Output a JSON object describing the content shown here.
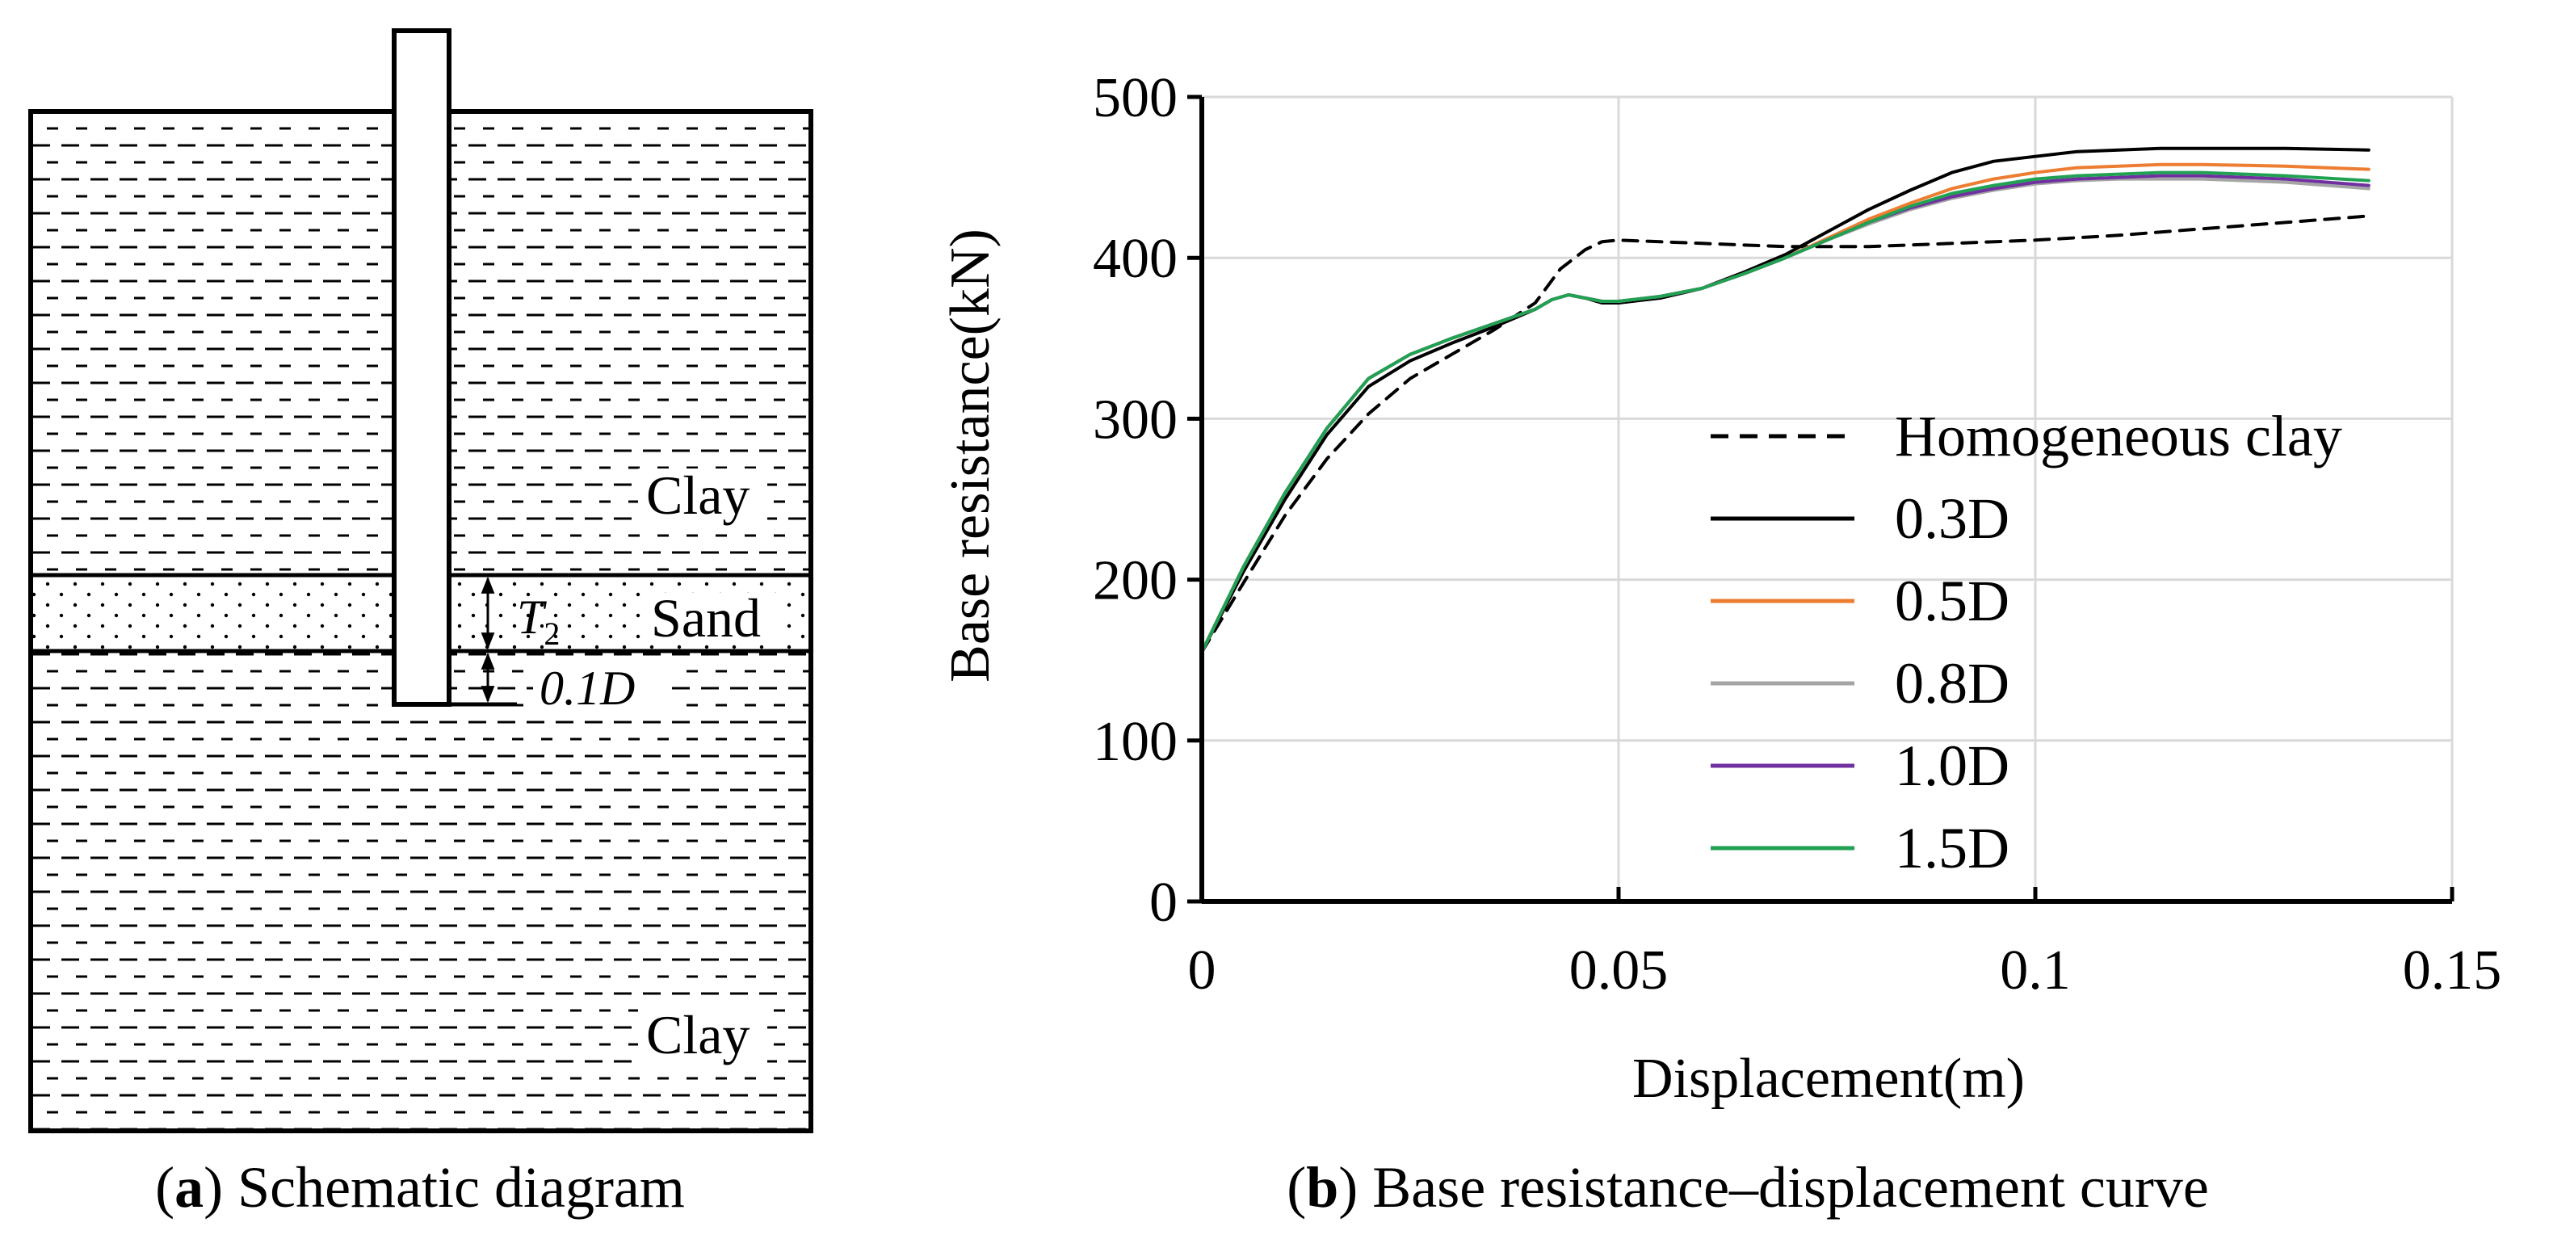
{
  "panel_a": {
    "caption_letter": "a",
    "caption_text": " Schematic diagram",
    "labels": {
      "clay_top": "Clay",
      "sand": "Sand",
      "clay_bottom": "Clay",
      "t2_symbol": "T",
      "t2_subscript": "2",
      "tip_distance": "0.1D"
    }
  },
  "panel_b": {
    "caption_letter": "b",
    "caption_text": " Base resistance–displacement curve"
  },
  "chart_data": {
    "type": "line",
    "title": "",
    "xlabel": "Displacement(m)",
    "ylabel": "Base resistance(kN)",
    "xlim": [
      0,
      0.15
    ],
    "ylim": [
      0,
      500
    ],
    "xticks": [
      0,
      0.05,
      0.1,
      0.15
    ],
    "xtick_labels": [
      "0",
      "0.05",
      "0.1",
      "0.15"
    ],
    "yticks": [
      0,
      100,
      200,
      300,
      400,
      500
    ],
    "ytick_labels": [
      "0",
      "100",
      "200",
      "300",
      "400",
      "500"
    ],
    "grid": true,
    "legend_position": "center-right",
    "series": [
      {
        "name": "Homogeneous clay",
        "color": "#000000",
        "dash": "dashed",
        "x": [
          0,
          0.005,
          0.01,
          0.015,
          0.02,
          0.025,
          0.03,
          0.035,
          0.04,
          0.043,
          0.046,
          0.048,
          0.05,
          0.055,
          0.06,
          0.07,
          0.08,
          0.09,
          0.1,
          0.11,
          0.12,
          0.13,
          0.14
        ],
        "y": [
          155,
          198,
          240,
          275,
          303,
          325,
          340,
          355,
          372,
          393,
          405,
          410,
          411,
          410,
          409,
          407,
          407,
          409,
          411,
          414,
          418,
          422,
          426
        ]
      },
      {
        "name": "0.3D",
        "color": "#000000",
        "dash": "solid",
        "x": [
          0,
          0.005,
          0.01,
          0.015,
          0.02,
          0.025,
          0.03,
          0.035,
          0.04,
          0.042,
          0.044,
          0.046,
          0.048,
          0.05,
          0.055,
          0.06,
          0.065,
          0.07,
          0.075,
          0.08,
          0.085,
          0.09,
          0.095,
          0.1,
          0.105,
          0.11,
          0.115,
          0.12,
          0.13,
          0.14
        ],
        "y": [
          155,
          205,
          250,
          290,
          320,
          336,
          347,
          357,
          368,
          374,
          377,
          375,
          372,
          372,
          375,
          381,
          391,
          402,
          416,
          430,
          442,
          453,
          460,
          463,
          466,
          467,
          468,
          468,
          468,
          467
        ]
      },
      {
        "name": "0.5D",
        "color": "#ED7D31",
        "dash": "solid",
        "x": [
          0,
          0.005,
          0.01,
          0.015,
          0.02,
          0.025,
          0.03,
          0.035,
          0.04,
          0.042,
          0.044,
          0.046,
          0.048,
          0.05,
          0.055,
          0.06,
          0.065,
          0.07,
          0.075,
          0.08,
          0.085,
          0.09,
          0.095,
          0.1,
          0.105,
          0.11,
          0.115,
          0.12,
          0.13,
          0.14
        ],
        "y": [
          155,
          208,
          254,
          294,
          325,
          340,
          350,
          359,
          368,
          374,
          377,
          375,
          373,
          373,
          376,
          381,
          390,
          400,
          412,
          424,
          434,
          443,
          449,
          453,
          456,
          457,
          458,
          458,
          457,
          455
        ]
      },
      {
        "name": "0.8D",
        "color": "#A5A5A5",
        "dash": "solid",
        "x": [
          0,
          0.005,
          0.01,
          0.015,
          0.02,
          0.025,
          0.03,
          0.035,
          0.04,
          0.042,
          0.044,
          0.046,
          0.048,
          0.05,
          0.055,
          0.06,
          0.065,
          0.07,
          0.075,
          0.08,
          0.085,
          0.09,
          0.095,
          0.1,
          0.105,
          0.11,
          0.115,
          0.12,
          0.13,
          0.14
        ],
        "y": [
          155,
          208,
          254,
          294,
          325,
          340,
          350,
          359,
          368,
          374,
          377,
          375,
          373,
          373,
          376,
          381,
          390,
          400,
          411,
          421,
          430,
          437,
          442,
          446,
          448,
          449,
          449,
          449,
          447,
          443
        ]
      },
      {
        "name": "1.0D",
        "color": "#7030A0",
        "dash": "solid",
        "x": [
          0,
          0.005,
          0.01,
          0.015,
          0.02,
          0.025,
          0.03,
          0.035,
          0.04,
          0.042,
          0.044,
          0.046,
          0.048,
          0.05,
          0.055,
          0.06,
          0.065,
          0.07,
          0.075,
          0.08,
          0.085,
          0.09,
          0.095,
          0.1,
          0.105,
          0.11,
          0.115,
          0.12,
          0.13,
          0.14
        ],
        "y": [
          155,
          208,
          254,
          294,
          325,
          340,
          350,
          359,
          368,
          374,
          377,
          375,
          373,
          373,
          376,
          381,
          390,
          400,
          411,
          422,
          431,
          438,
          443,
          447,
          449,
          450,
          451,
          451,
          449,
          445
        ]
      },
      {
        "name": "1.5D",
        "color": "#21A152",
        "dash": "solid",
        "x": [
          0,
          0.005,
          0.01,
          0.015,
          0.02,
          0.025,
          0.03,
          0.035,
          0.04,
          0.042,
          0.044,
          0.046,
          0.048,
          0.05,
          0.055,
          0.06,
          0.065,
          0.07,
          0.075,
          0.08,
          0.085,
          0.09,
          0.095,
          0.1,
          0.105,
          0.11,
          0.115,
          0.12,
          0.13,
          0.14
        ],
        "y": [
          155,
          208,
          254,
          294,
          325,
          340,
          350,
          359,
          368,
          374,
          377,
          375,
          373,
          373,
          376,
          381,
          390,
          400,
          411,
          422,
          432,
          440,
          445,
          449,
          451,
          452,
          453,
          453,
          451,
          448
        ]
      }
    ]
  }
}
